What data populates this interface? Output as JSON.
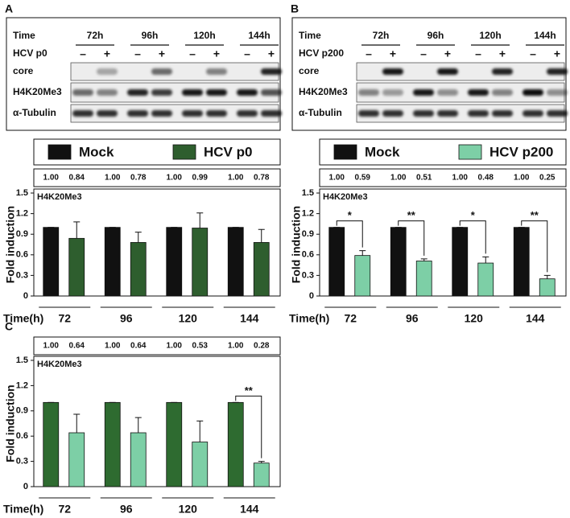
{
  "panel_labels": [
    "A",
    "B",
    "C"
  ],
  "blots": [
    {
      "time_label": "Time",
      "times": [
        "72h",
        "96h",
        "120h",
        "144h"
      ],
      "treatment_label": "HCV p0",
      "signs": [
        "–",
        "+",
        "–",
        "+",
        "–",
        "+",
        "–",
        "+"
      ],
      "rows": [
        "core",
        "H4K20Me3",
        "α-Tubulin"
      ]
    },
    {
      "time_label": "Time",
      "times": [
        "72h",
        "96h",
        "120h",
        "144h"
      ],
      "treatment_label": "HCV p200",
      "signs": [
        "–",
        "+",
        "–",
        "+",
        "–",
        "+",
        "–",
        "+"
      ],
      "rows": [
        "core",
        "H4K20Me3",
        "α-Tubulin"
      ]
    }
  ],
  "chart_data": [
    {
      "type": "bar",
      "annotation": "H4K20Me3",
      "y_label": "Fold induction",
      "x_label": "Time(h)",
      "categories": [
        "72",
        "96",
        "120",
        "144"
      ],
      "series": [
        {
          "name": "Mock",
          "color": "#111111",
          "values": [
            1,
            1,
            1,
            1
          ],
          "value_labels": [
            "1.00",
            "1.00",
            "1.00",
            "1.00"
          ],
          "errors": [
            0,
            0,
            0,
            0
          ]
        },
        {
          "name": "HCV p0",
          "color": "#2e5e2e",
          "values": [
            0.84,
            0.78,
            0.99,
            0.78
          ],
          "value_labels": [
            "0.84",
            "0.78",
            "0.99",
            "0.78"
          ],
          "errors": [
            0.24,
            0.15,
            0.22,
            0.19
          ]
        }
      ],
      "ylim": [
        0,
        1.5
      ],
      "yticks": [
        0,
        0.3,
        0.6,
        0.9,
        1.2,
        1.5
      ],
      "significance": [
        null,
        null,
        null,
        null
      ]
    },
    {
      "type": "bar",
      "annotation": "H4K20Me3",
      "y_label": "Fold induction",
      "x_label": "Time(h)",
      "categories": [
        "72",
        "96",
        "120",
        "144"
      ],
      "series": [
        {
          "name": "Mock",
          "color": "#111111",
          "values": [
            1,
            1,
            1,
            1
          ],
          "value_labels": [
            "1.00",
            "1.00",
            "1.00",
            "1.00"
          ],
          "errors": [
            0,
            0,
            0,
            0
          ]
        },
        {
          "name": "HCV p200",
          "color": "#7dcfa6",
          "values": [
            0.59,
            0.51,
            0.48,
            0.25
          ],
          "value_labels": [
            "0.59",
            "0.51",
            "0.48",
            "0.25"
          ],
          "errors": [
            0.07,
            0.03,
            0.09,
            0.05
          ]
        }
      ],
      "ylim": [
        0,
        1.5
      ],
      "yticks": [
        0,
        0.3,
        0.6,
        0.9,
        1.2,
        1.5
      ],
      "significance": [
        "*",
        "**",
        "*",
        "**"
      ]
    },
    {
      "type": "bar",
      "annotation": "H4K20Me3",
      "y_label": "Fold induction",
      "x_label": "Time(h)",
      "categories": [
        "72",
        "96",
        "120",
        "144"
      ],
      "series": [
        {
          "color": "#2e6b30",
          "values": [
            1,
            1,
            1,
            1
          ],
          "value_labels": [
            "1.00",
            "1.00",
            "1.00",
            "1.00"
          ],
          "errors": [
            0,
            0,
            0,
            0
          ]
        },
        {
          "color": "#7dcfa6",
          "values": [
            0.64,
            0.64,
            0.53,
            0.28
          ],
          "value_labels": [
            "0.64",
            "0.64",
            "0.53",
            "0.28"
          ],
          "errors": [
            0.22,
            0.18,
            0.25,
            0.02
          ]
        }
      ],
      "ylim": [
        0,
        1.5
      ],
      "yticks": [
        0,
        0.3,
        0.6,
        0.9,
        1.2,
        1.5
      ],
      "significance": [
        null,
        null,
        null,
        "**"
      ]
    }
  ]
}
